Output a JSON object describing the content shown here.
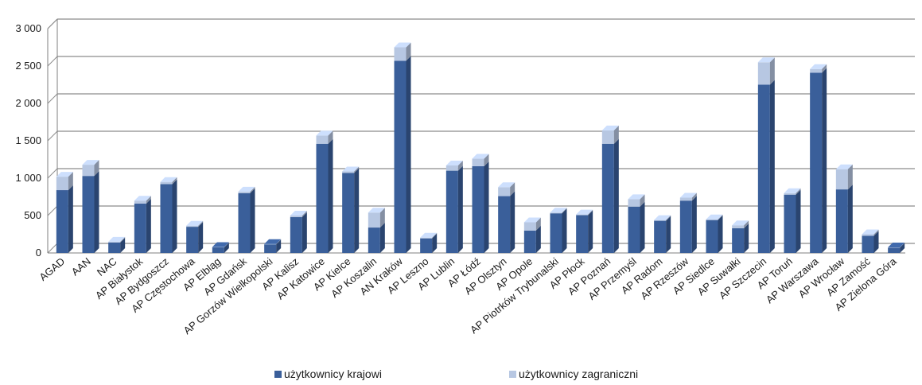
{
  "colors": {
    "series_domestic": "#3a5f9a",
    "series_foreign": "#b7c7e2",
    "grid": "#8c8c8c",
    "axis": "#7f7f7f"
  },
  "chart_data": {
    "type": "bar",
    "stacked": true,
    "three_d": true,
    "grid": true,
    "legend_position": "bottom",
    "ylim": [
      0,
      3000
    ],
    "yticks": [
      0,
      500,
      1000,
      1500,
      2000,
      2500,
      3000
    ],
    "ytick_labels": [
      "0",
      "500",
      "1 000",
      "1 500",
      "2 000",
      "2 500",
      "3 000"
    ],
    "categories": [
      "AGAD",
      "AAN",
      "NAC",
      "AP Białystok",
      "AP Bydgoszcz",
      "AP Częstochowa",
      "AP Elbląg",
      "AP Gdańsk",
      "AP Gorzów Wielkopolski",
      "AP Kalisz",
      "AP Katowice",
      "AP Kielce",
      "AP Koszalin",
      "AN Kraków",
      "AP Leszno",
      "AP Lublin",
      "AP Łódź",
      "AP Olsztyn",
      "AP Opole",
      "AP Piotrków Trybunalski",
      "AP Płock",
      "AP Poznań",
      "AP Przemyśl",
      "AP Radom",
      "AP Rzeszów",
      "AP Siedlce",
      "AP Suwałki",
      "AP Szczecin",
      "AP Toruń",
      "AP Warszawa",
      "AP Wrocław",
      "AP Zamość",
      "AP Zielona Góra"
    ],
    "series": [
      {
        "name": "użytkownicy krajowi",
        "values": [
          840,
          1030,
          140,
          660,
          920,
          350,
          75,
          800,
          115,
          480,
          1460,
          1070,
          340,
          2570,
          195,
          1100,
          1160,
          760,
          300,
          530,
          505,
          1460,
          620,
          430,
          700,
          440,
          330,
          2250,
          780,
          2410,
          850,
          230,
          70
        ]
      },
      {
        "name": "użytkownicy zagraniczni",
        "values": [
          180,
          150,
          10,
          40,
          30,
          15,
          5,
          20,
          5,
          20,
          110,
          20,
          200,
          180,
          10,
          70,
          100,
          120,
          110,
          10,
          10,
          180,
          100,
          10,
          40,
          10,
          40,
          300,
          20,
          50,
          270,
          20,
          5
        ]
      }
    ]
  }
}
